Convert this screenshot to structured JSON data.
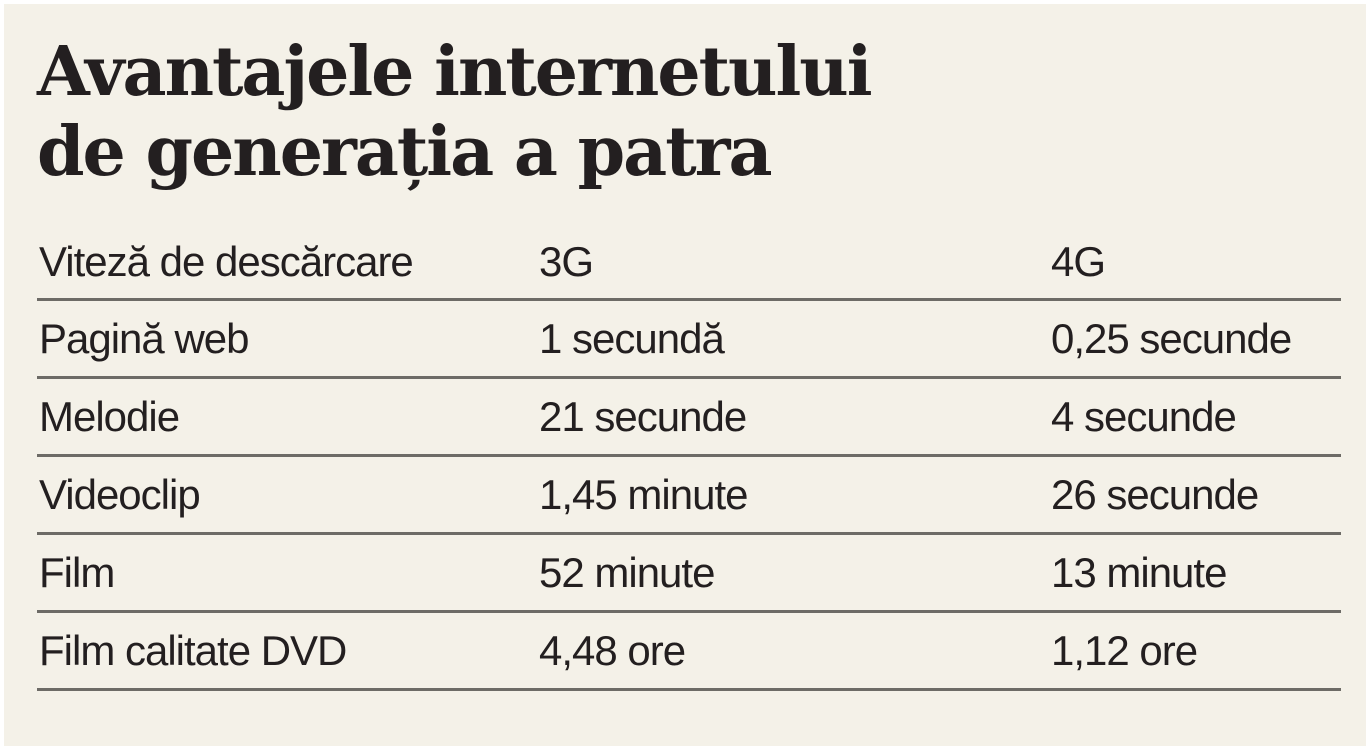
{
  "chart_data": {
    "type": "table",
    "title": [
      "Avantajele internetului",
      "de generația a patra"
    ],
    "columns": [
      "Viteză de descărcare",
      "3G",
      "4G"
    ],
    "rows": [
      [
        "Pagină web",
        "1 secundă",
        "0,25 secunde"
      ],
      [
        "Melodie",
        "21 secunde",
        "4 secunde"
      ],
      [
        "Videoclip",
        "1,45 minute",
        "26 secunde"
      ],
      [
        "Film",
        "52 minute",
        "13 minute"
      ],
      [
        "Film calitate DVD",
        "4,48 ore",
        "1,12 ore"
      ]
    ]
  }
}
